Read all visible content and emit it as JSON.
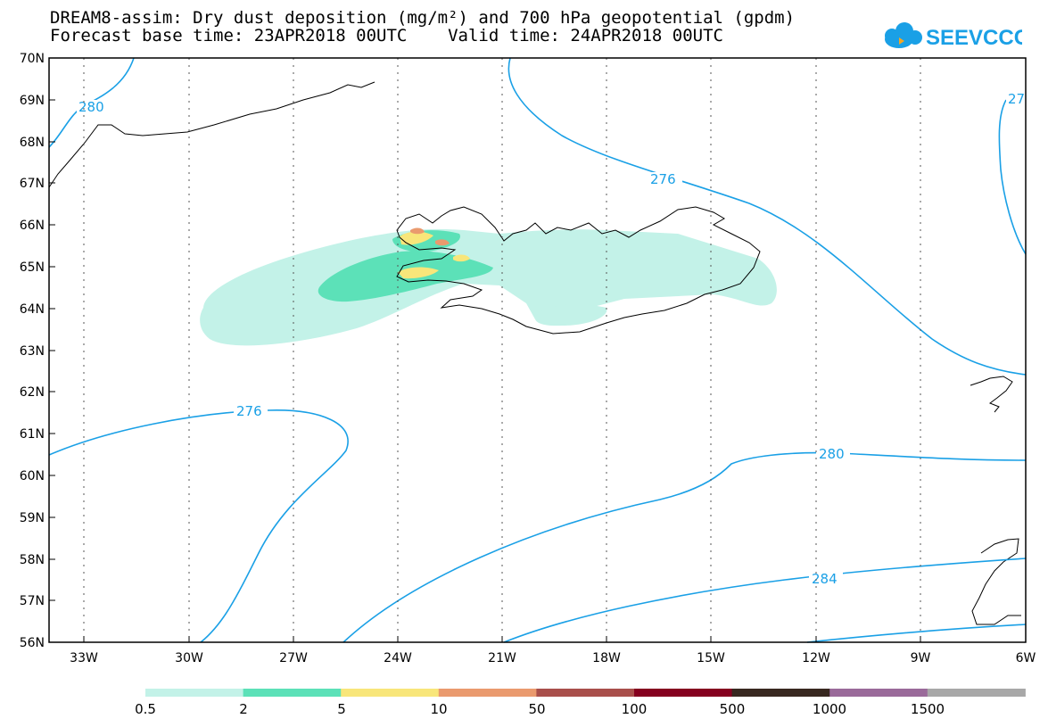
{
  "title": {
    "line1": "DREAM8-assim: Dry dust deposition (mg/m²) and 700 hPa geopotential (gpdm)",
    "line2": "Forecast base time: 23APR2018 00UTC    Valid time: 24APR2018 00UTC"
  },
  "logo": {
    "text": "SEEVCCC",
    "color": "#1aa0e6",
    "icon": "cloud-icon"
  },
  "axes": {
    "lat_labels": [
      "70N",
      "69N",
      "68N",
      "67N",
      "66N",
      "65N",
      "64N",
      "63N",
      "62N",
      "61N",
      "60N",
      "59N",
      "58N",
      "57N",
      "56N"
    ],
    "lon_labels": [
      "33W",
      "30W",
      "27W",
      "24W",
      "21W",
      "18W",
      "15W",
      "12W",
      "9W",
      "6W"
    ]
  },
  "contours": [
    {
      "label": "280",
      "color": "#1aa0e6"
    },
    {
      "label": "276",
      "color": "#1aa0e6"
    },
    {
      "label": "27",
      "color": "#1aa0e6"
    },
    {
      "label": "276",
      "color": "#1aa0e6"
    },
    {
      "label": "280",
      "color": "#1aa0e6"
    },
    {
      "label": "284",
      "color": "#1aa0e6"
    }
  ],
  "colorbar": {
    "labels": [
      "0.5",
      "2",
      "5",
      "10",
      "50",
      "100",
      "500",
      "1000",
      "1500"
    ],
    "colors": [
      "#c3f2e8",
      "#5ce1b8",
      "#f8e67a",
      "#ea9a6e",
      "#a94f4b",
      "#85001f",
      "#382820",
      "#9a6a9a",
      "#a8a8a8"
    ]
  }
}
